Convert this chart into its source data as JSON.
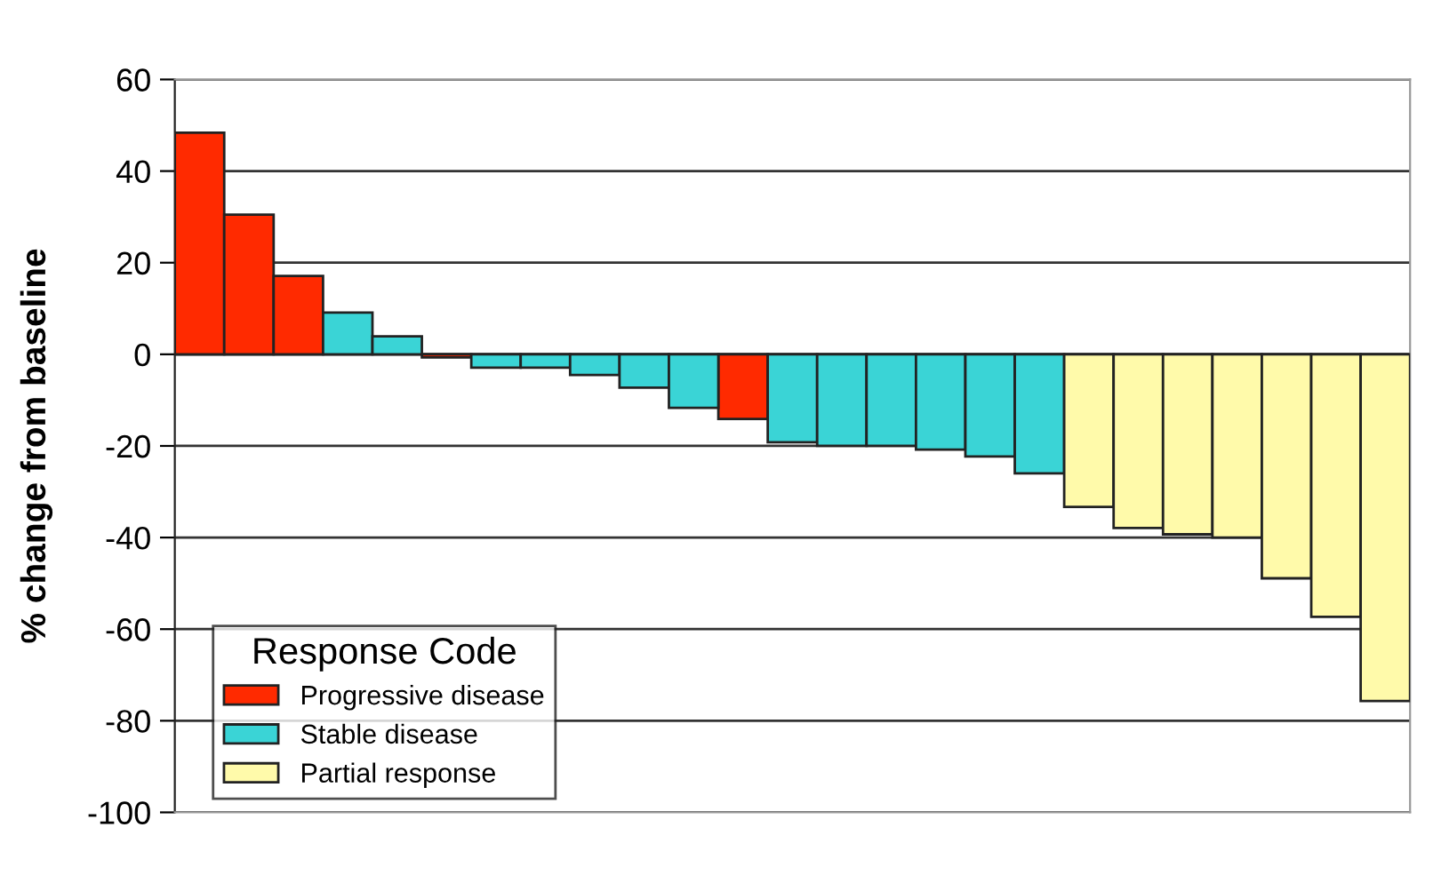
{
  "chart_data": {
    "type": "bar",
    "ylabel": "% change from baseline",
    "legend_title": "Response Code",
    "categories": [
      null,
      null,
      null,
      null,
      null,
      null,
      null,
      null,
      null,
      null,
      null,
      null,
      null,
      null,
      null,
      null,
      null,
      null,
      null,
      null,
      null,
      null,
      null,
      null,
      null
    ],
    "series": [
      {
        "name": "Progressive disease",
        "color": "#ff2a00",
        "values": [
          48.4,
          30.5,
          17.1,
          null,
          null,
          -0.7,
          null,
          null,
          null,
          null,
          null,
          -14.1,
          null,
          null,
          null,
          null,
          null,
          null,
          null,
          null,
          null,
          null,
          null,
          null,
          null
        ]
      },
      {
        "name": "Stable disease",
        "color": "#3ad4d6",
        "values": [
          null,
          null,
          null,
          9.1,
          3.9,
          null,
          -2.9,
          -2.9,
          -4.5,
          -7.3,
          -11.7,
          null,
          -19.2,
          -20,
          -20,
          -20.8,
          -22.3,
          -26,
          null,
          null,
          null,
          null,
          null,
          null,
          null
        ]
      },
      {
        "name": "Partial response",
        "color": "#fffaaa",
        "values": [
          null,
          null,
          null,
          null,
          null,
          null,
          null,
          null,
          null,
          null,
          null,
          null,
          null,
          null,
          null,
          null,
          null,
          null,
          -33.3,
          -37.9,
          -39.3,
          -40,
          -48.9,
          -57.3,
          -75.7
        ]
      }
    ],
    "ylim": [
      -100,
      60
    ],
    "yticks": [
      -100,
      -80,
      -60,
      -40,
      -20,
      0,
      20,
      40,
      60
    ],
    "grid": "y",
    "stacked": true,
    "legend": "bottom left",
    "tick_labels": "y"
  }
}
